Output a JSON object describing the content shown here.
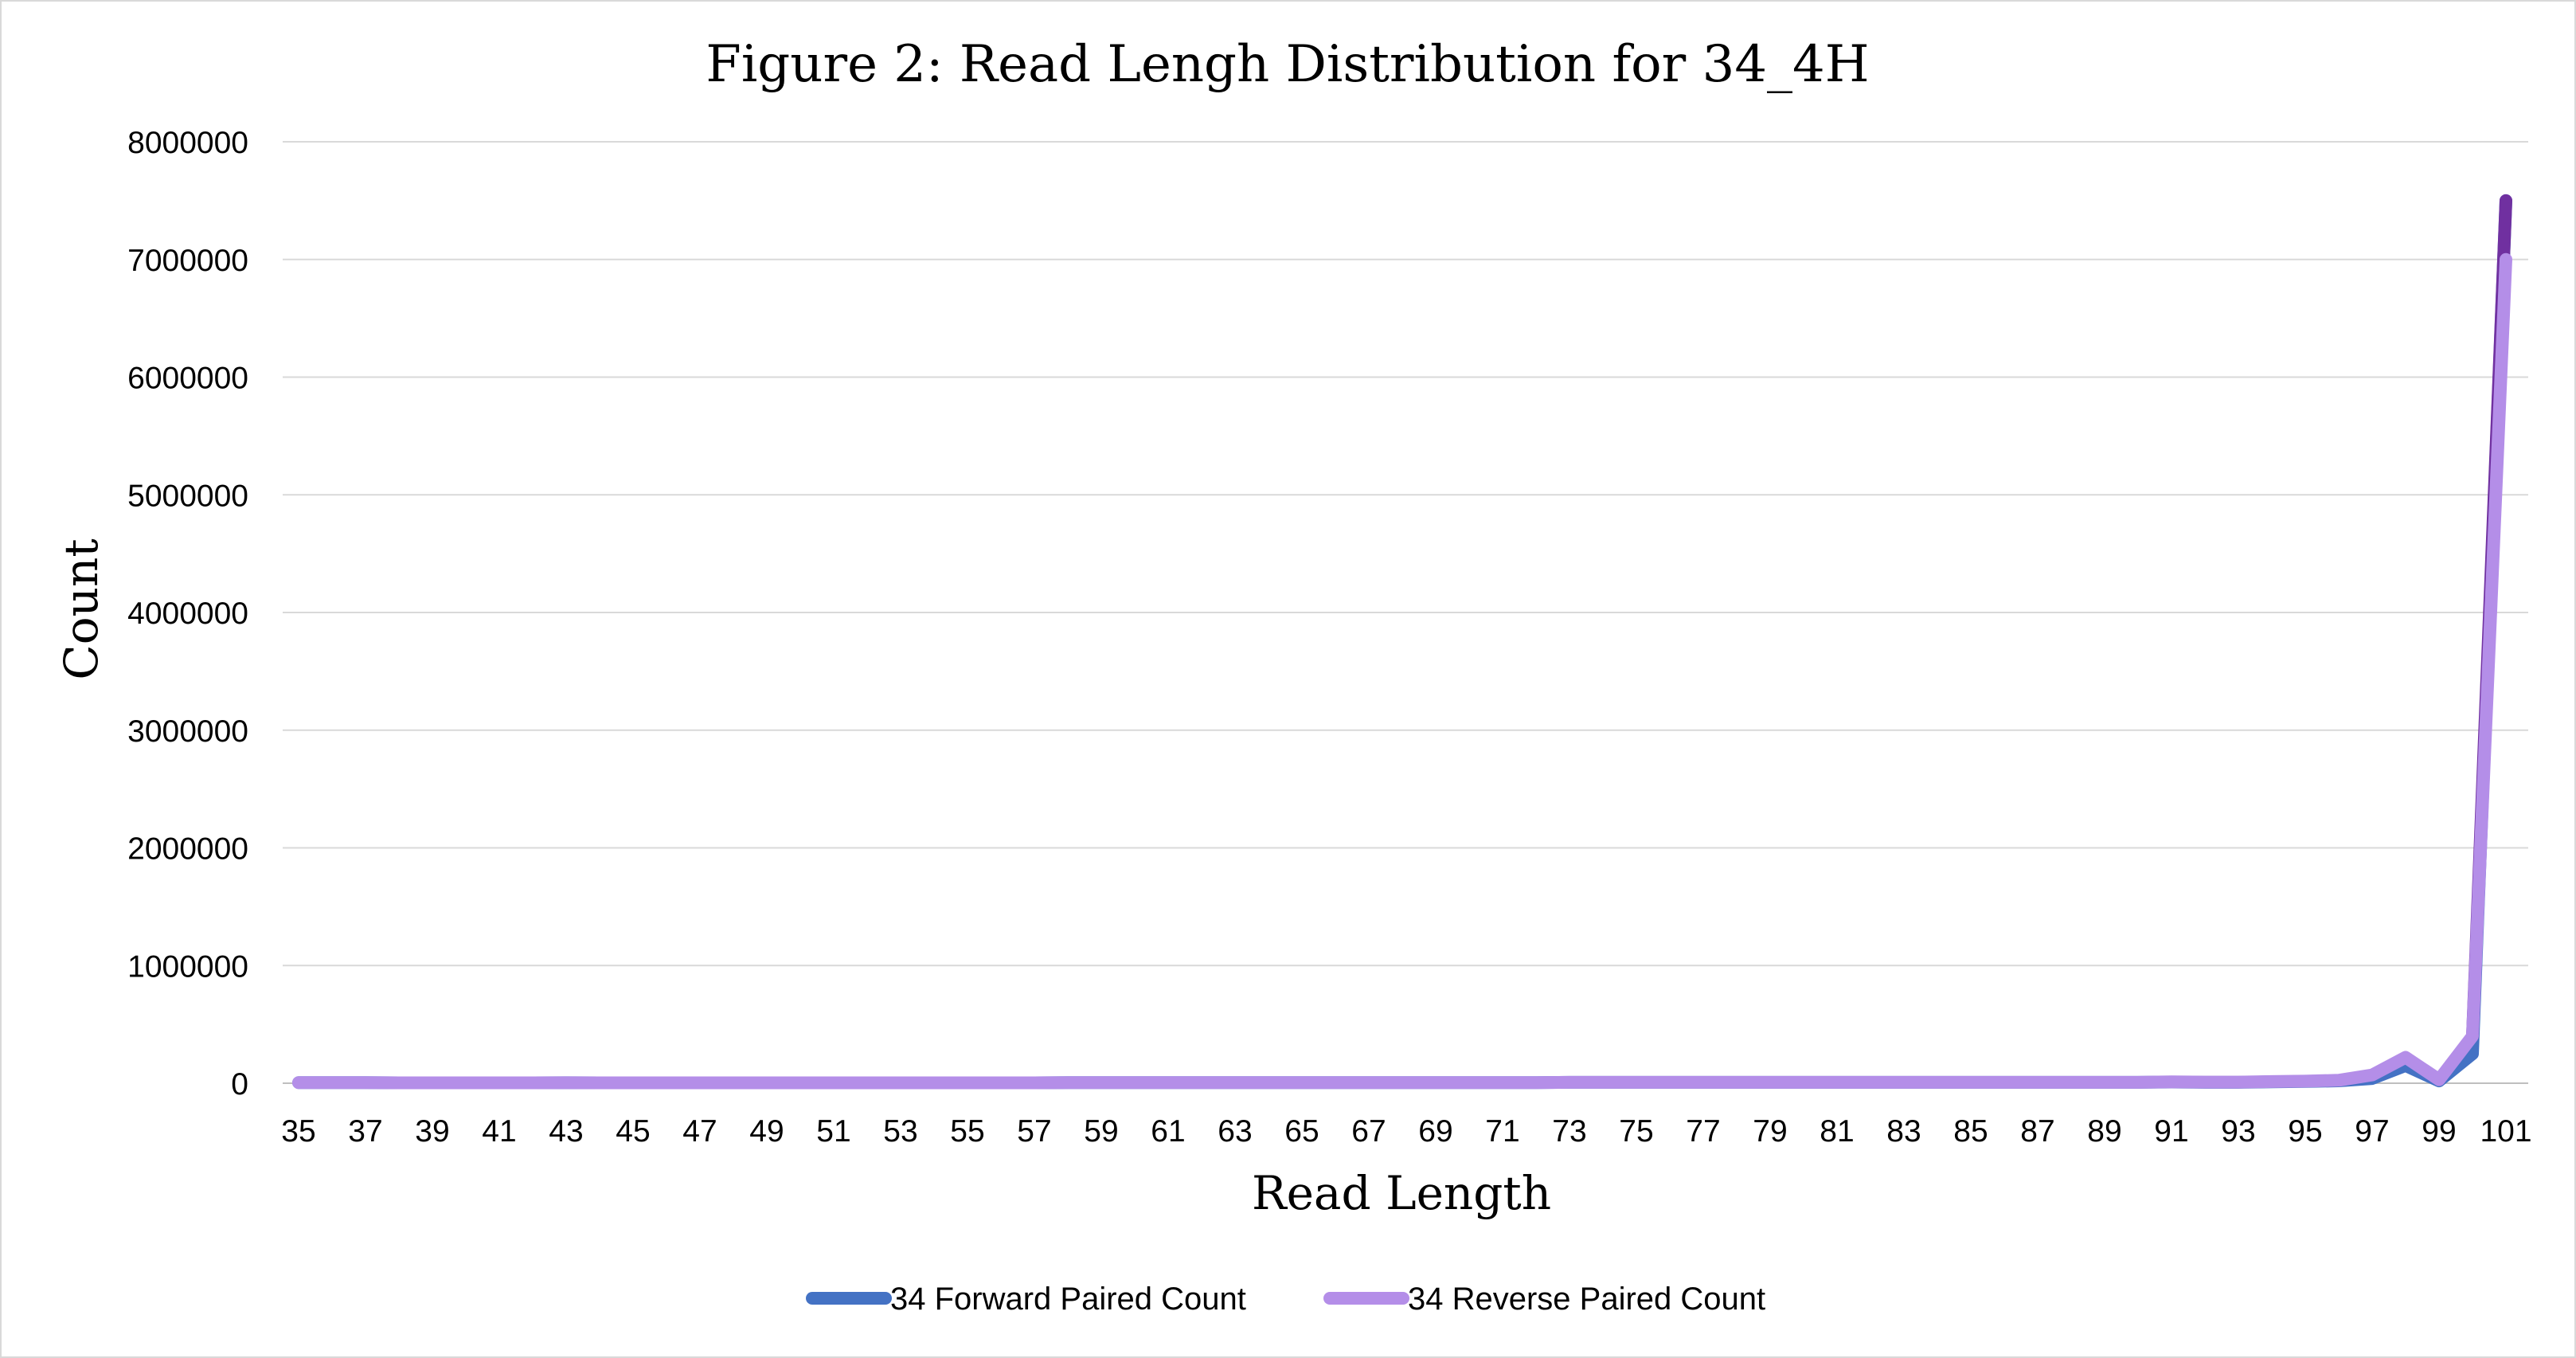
{
  "chart_data": {
    "type": "line",
    "title": "Figure 2: Read Lengh Distribution for 34_4H",
    "xlabel": "Read Length",
    "ylabel": "Count",
    "ylim": [
      0,
      8000000
    ],
    "y_ticks": [
      "0",
      "1000000",
      "2000000",
      "3000000",
      "4000000",
      "5000000",
      "6000000",
      "7000000",
      "8000000"
    ],
    "x_tick_labels": [
      "35",
      "37",
      "39",
      "41",
      "43",
      "45",
      "47",
      "49",
      "51",
      "53",
      "55",
      "57",
      "59",
      "61",
      "63",
      "65",
      "67",
      "69",
      "71",
      "73",
      "75",
      "77",
      "79",
      "81",
      "83",
      "85",
      "87",
      "89",
      "91",
      "93",
      "95",
      "97",
      "99",
      "101"
    ],
    "x": [
      35,
      36,
      37,
      38,
      39,
      40,
      41,
      42,
      43,
      44,
      45,
      46,
      47,
      48,
      49,
      50,
      51,
      52,
      53,
      54,
      55,
      56,
      57,
      58,
      59,
      60,
      61,
      62,
      63,
      64,
      65,
      66,
      67,
      68,
      69,
      70,
      71,
      72,
      73,
      74,
      75,
      76,
      77,
      78,
      79,
      80,
      81,
      82,
      83,
      84,
      85,
      86,
      87,
      88,
      89,
      90,
      91,
      92,
      93,
      94,
      95,
      96,
      97,
      98,
      99,
      100,
      101
    ],
    "grid": true,
    "legend": "bottom",
    "series": [
      {
        "name": "34 Forward Paired Count",
        "color": "#4472c4",
        "values": [
          5000,
          5000,
          5000,
          3000,
          3000,
          3000,
          3000,
          3000,
          4000,
          3000,
          3000,
          3000,
          3000,
          3000,
          3000,
          3000,
          3000,
          3000,
          3000,
          3000,
          3000,
          3000,
          3000,
          5000,
          5000,
          5000,
          5000,
          5000,
          5000,
          5000,
          5000,
          5000,
          5000,
          5000,
          5000,
          5000,
          5000,
          5000,
          8000,
          8000,
          8000,
          8000,
          8000,
          8000,
          8000,
          8000,
          8000,
          8000,
          8000,
          8000,
          8000,
          8000,
          8000,
          8000,
          8000,
          8000,
          10000,
          8000,
          8000,
          12000,
          15000,
          20000,
          40000,
          150000,
          20000,
          250000,
          7500000
        ]
      },
      {
        "name": "34 Reverse Paired Count",
        "color": "#b48ee8",
        "values": [
          5000,
          5000,
          5000,
          3000,
          3000,
          3000,
          3000,
          3000,
          4000,
          3000,
          3000,
          3000,
          3000,
          3000,
          3000,
          3000,
          3000,
          3000,
          3000,
          3000,
          3000,
          3000,
          3000,
          5000,
          5000,
          5000,
          5000,
          5000,
          5000,
          5000,
          5000,
          5000,
          5000,
          5000,
          5000,
          5000,
          5000,
          5000,
          8000,
          8000,
          8000,
          8000,
          8000,
          8000,
          8000,
          8000,
          8000,
          8000,
          8000,
          8000,
          8000,
          8000,
          8000,
          8000,
          8000,
          8000,
          12000,
          9000,
          9000,
          14000,
          18000,
          25000,
          70000,
          220000,
          30000,
          400000,
          7000000
        ]
      }
    ]
  }
}
